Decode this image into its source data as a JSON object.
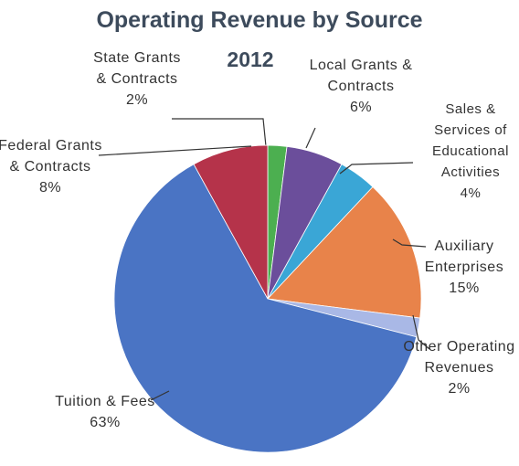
{
  "chart_data": {
    "type": "pie",
    "title": "Operating Revenue by Source",
    "subtitle": "2012",
    "categories": [
      "State Grants & Contracts",
      "Local Grants & Contracts",
      "Sales & Services of Educational Activities",
      "Auxiliary Enterprises",
      "Other Operating Revenues",
      "Tuition & Fees",
      "Federal Grants & Contracts"
    ],
    "values": [
      2,
      6,
      4,
      15,
      2,
      63,
      8
    ],
    "value_labels": [
      "2%",
      "6%",
      "4%",
      "15%",
      "2%",
      "63%",
      "8%"
    ],
    "colors": [
      "#4caf50",
      "#6b4e9b",
      "#3aa6d6",
      "#e8834a",
      "#a9b8e6",
      "#4a74c4",
      "#b5334a"
    ]
  }
}
